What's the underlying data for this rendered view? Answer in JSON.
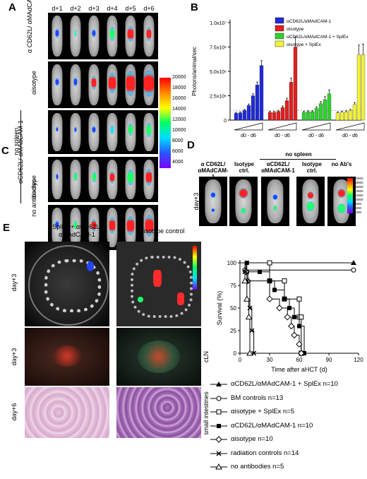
{
  "panel_letters": {
    "A": "A",
    "B": "B",
    "C": "C",
    "D": "D",
    "E": "E"
  },
  "panelA": {
    "days": [
      "d+1",
      "d+2",
      "d+3",
      "d+4",
      "d+5",
      "d+6"
    ],
    "row_labels": [
      "α CD62L/ αMAdCAM-1",
      "αisotype",
      "αCD62L/ αMAdCAM-1",
      "αisotype",
      "no antibodies"
    ],
    "group_label": "no spleen",
    "colorbar_ticks": [
      "20000",
      "18000",
      "16000",
      "14000",
      "12000",
      "10000",
      "8000",
      "6000",
      "4000"
    ]
  },
  "chart_data": {
    "type": "bar",
    "ylabel": "Photons/animal/sec",
    "yticks": [
      "0",
      "2.5x10⁶",
      "5.0x10⁶",
      "7.5x10⁶",
      "1.0x10⁷"
    ],
    "ylim": [
      0,
      10000000
    ],
    "xlabel": "d0 - d6",
    "series": [
      {
        "name": "αCD62L/αMAdCAM-1",
        "color": "#1f2bd6",
        "values": [
          700000,
          750000,
          1000000,
          1500000,
          2500000,
          3600000,
          5600000
        ]
      },
      {
        "name": "αisotype",
        "color": "#e02020",
        "values": [
          800000,
          800000,
          900000,
          1300000,
          2000000,
          3900000,
          7500000
        ]
      },
      {
        "name": "αCD62L/αMAdCAM-1 + SplEx",
        "color": "#2fd12f",
        "values": [
          800000,
          850000,
          850000,
          1200000,
          1700000,
          2100000,
          2700000
        ]
      },
      {
        "name": "αisotype + SplEx",
        "color": "#f2f23a",
        "values": [
          750000,
          800000,
          850000,
          1000000,
          1600000,
          6700000,
          6700000
        ]
      }
    ],
    "errors": [
      [
        100000,
        100000,
        100000,
        150000,
        200000,
        300000,
        500000
      ],
      [
        100000,
        100000,
        100000,
        150000,
        250000,
        400000,
        1000000
      ],
      [
        100000,
        100000,
        100000,
        150000,
        200000,
        300000,
        400000
      ],
      [
        100000,
        100000,
        100000,
        100000,
        200000,
        1000000,
        1100000
      ]
    ]
  },
  "panelD": {
    "group_label": "no spleen",
    "columns": [
      "α CD62L/ αMAdCAM-1",
      "Isotype ctrl.",
      "αCD62L/ αMAdCAM-1",
      "Isotype ctrl.",
      "no Ab's"
    ],
    "row_label": "day+3",
    "colorbar_ticks": [
      "20000",
      "18000",
      "16000",
      "14000",
      "12000",
      "10000",
      "8000",
      "6000",
      "4000"
    ]
  },
  "panelE": {
    "col1_title": "SplEx + αCD62L/ αMAdCAM-1",
    "col2_title": "αisotype control",
    "row_labels": [
      "day+3",
      "day+3",
      "day+6"
    ],
    "side_labels": [
      "cLN",
      "small intestines"
    ],
    "survival": {
      "ylabel": "Survival (%)",
      "xlabel": "Time after aHCT (d)",
      "yticks": [
        "0",
        "25",
        "50",
        "75",
        "100"
      ],
      "xticks": [
        "0",
        "30",
        "60",
        "90",
        "120"
      ],
      "xlim": [
        0,
        120
      ],
      "ylim": [
        0,
        100
      ],
      "curves": [
        {
          "name": "αCD62L/αMAdCAM-1 + SplEx n=10",
          "marker": "filled-triangle",
          "points": [
            [
              0,
              100
            ],
            [
              115,
              100
            ]
          ]
        },
        {
          "name": "BM controls n=13",
          "marker": "open-circle",
          "points": [
            [
              0,
              100
            ],
            [
              5,
              92
            ],
            [
              115,
              92
            ]
          ]
        },
        {
          "name": "αisotype + SplEx n=5",
          "marker": "open-square",
          "points": [
            [
              0,
              100
            ],
            [
              30,
              100
            ],
            [
              30,
              80
            ],
            [
              45,
              80
            ],
            [
              45,
              60
            ],
            [
              60,
              60
            ],
            [
              60,
              40
            ],
            [
              62,
              40
            ],
            [
              62,
              0
            ]
          ]
        },
        {
          "name": "αCD62L/αMAdCAM-1 n=10",
          "marker": "filled-square",
          "points": [
            [
              0,
              100
            ],
            [
              7,
              100
            ],
            [
              7,
              90
            ],
            [
              20,
              90
            ],
            [
              30,
              80
            ],
            [
              35,
              70
            ],
            [
              45,
              60
            ],
            [
              50,
              50
            ],
            [
              55,
              40
            ],
            [
              60,
              30
            ],
            [
              65,
              0
            ]
          ]
        },
        {
          "name": "αisotype n=10",
          "marker": "open-diamond",
          "points": [
            [
              0,
              100
            ],
            [
              6,
              90
            ],
            [
              8,
              80
            ],
            [
              30,
              60
            ],
            [
              40,
              50
            ],
            [
              48,
              40
            ],
            [
              52,
              30
            ],
            [
              55,
              20
            ],
            [
              60,
              10
            ],
            [
              62,
              0
            ]
          ]
        },
        {
          "name": "radiation controls n=14",
          "marker": "x",
          "points": [
            [
              0,
              100
            ],
            [
              5,
              90
            ],
            [
              7,
              80
            ],
            [
              10,
              50
            ],
            [
              12,
              25
            ],
            [
              14,
              0
            ]
          ]
        },
        {
          "name": "no antibodies n=5",
          "marker": "open-triangle",
          "points": [
            [
              0,
              100
            ],
            [
              5,
              80
            ],
            [
              7,
              60
            ],
            [
              9,
              40
            ],
            [
              10,
              0
            ]
          ]
        }
      ]
    }
  }
}
